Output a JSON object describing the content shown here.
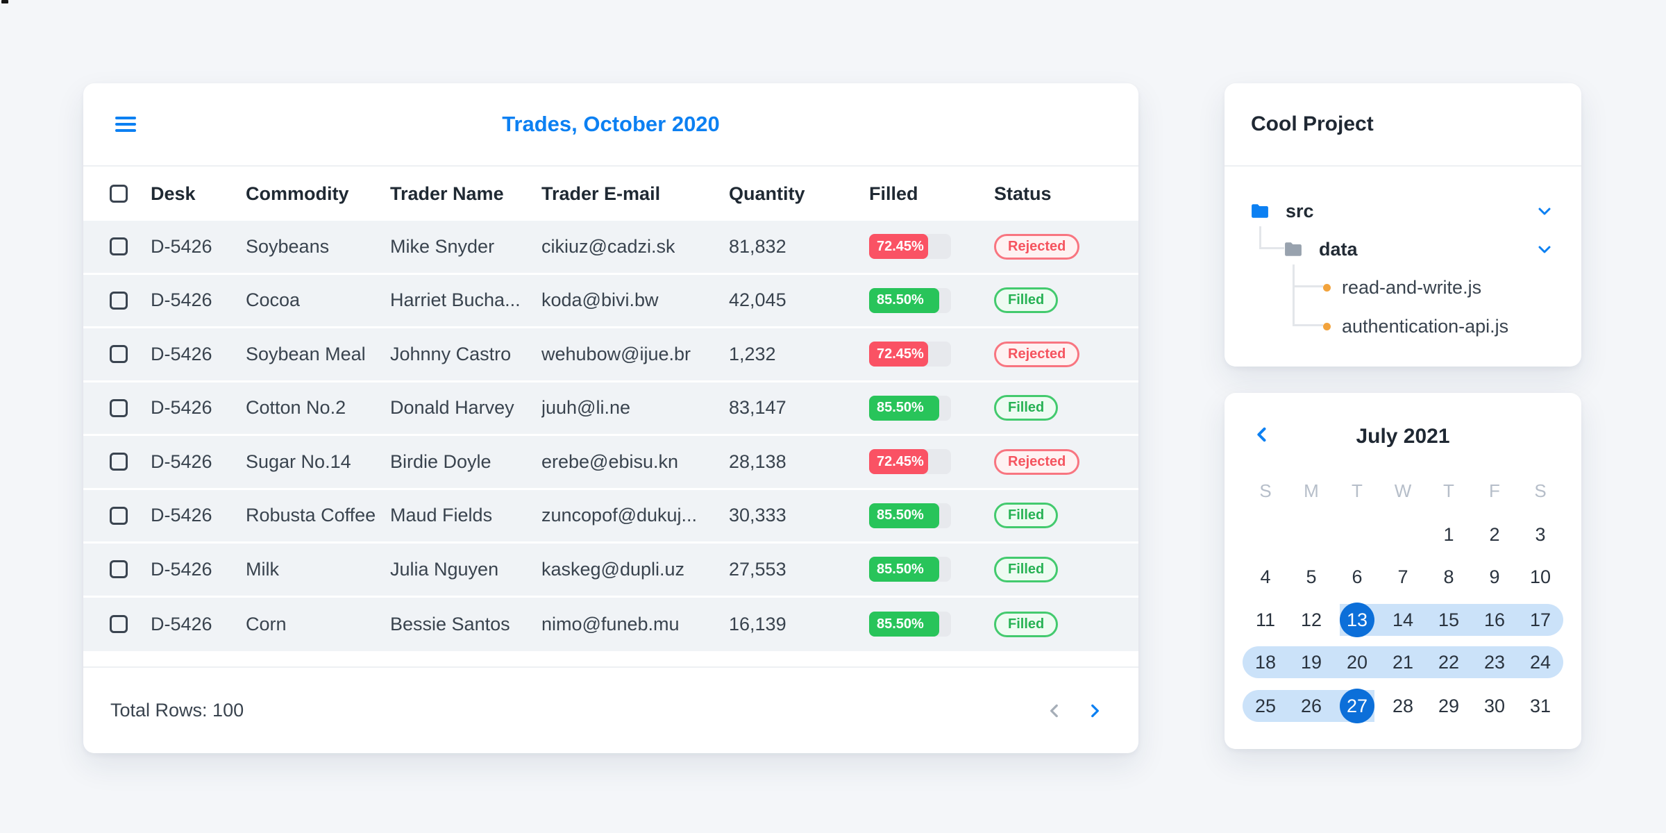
{
  "colors": {
    "page_bg": "#F4F6F9",
    "accent_blue": "#0C80F2",
    "deep_blue": "#0C6FD9",
    "band_blue": "#CBE2F9",
    "red": "#FA5264",
    "green": "#28C45A",
    "track": "#E7E9ED",
    "red_badge_text": "#F5545F",
    "red_badge_border": "#F87580",
    "red_badge_bg": "#FEF2F2",
    "green_badge_text": "#27B254",
    "green_badge_border": "#43CA6E",
    "green_badge_bg": "#EEFBF2",
    "row_bg": "#F0F3F6",
    "divider": "#EDF0F3",
    "text_dark": "#1F2933",
    "text_body": "#39434E",
    "muted": "#B6BEC9",
    "orange": "#F2A33C",
    "folder_gray": "#98A2AE",
    "tree_line": "#E3E6EA",
    "disabled_chev": "#A6AEB8"
  },
  "table": {
    "title": "Trades, October 2020",
    "columns": [
      "Desk",
      "Commodity",
      "Trader Name",
      "Trader E-mail",
      "Quantity",
      "Filled",
      "Status"
    ],
    "rows": [
      {
        "desk": "D-5426",
        "commodity": "Soybeans",
        "trader": "Mike Snyder",
        "email": "cikiuz@cadzi.sk",
        "quantity": "81,832",
        "filled_label": "72.45%",
        "filled_value": 72.45,
        "status": "Rejected"
      },
      {
        "desk": "D-5426",
        "commodity": "Cocoa",
        "trader": "Harriet Bucha...",
        "email": "koda@bivi.bw",
        "quantity": "42,045",
        "filled_label": "85.50%",
        "filled_value": 85.5,
        "status": "Filled"
      },
      {
        "desk": "D-5426",
        "commodity": "Soybean Meal",
        "trader": "Johnny Castro",
        "email": "wehubow@ijue.br",
        "quantity": "1,232",
        "filled_label": "72.45%",
        "filled_value": 72.45,
        "status": "Rejected"
      },
      {
        "desk": "D-5426",
        "commodity": "Cotton No.2",
        "trader": "Donald Harvey",
        "email": "juuh@li.ne",
        "quantity": "83,147",
        "filled_label": "85.50%",
        "filled_value": 85.5,
        "status": "Filled"
      },
      {
        "desk": "D-5426",
        "commodity": "Sugar No.14",
        "trader": "Birdie Doyle",
        "email": "erebe@ebisu.kn",
        "quantity": "28,138",
        "filled_label": "72.45%",
        "filled_value": 72.45,
        "status": "Rejected"
      },
      {
        "desk": "D-5426",
        "commodity": "Robusta Coffee",
        "trader": "Maud Fields",
        "email": "zuncopof@dukuj...",
        "quantity": "30,333",
        "filled_label": "85.50%",
        "filled_value": 85.5,
        "status": "Filled"
      },
      {
        "desk": "D-5426",
        "commodity": "Milk",
        "trader": "Julia Nguyen",
        "email": "kaskeg@dupli.uz",
        "quantity": "27,553",
        "filled_label": "85.50%",
        "filled_value": 85.5,
        "status": "Filled"
      },
      {
        "desk": "D-5426",
        "commodity": "Corn",
        "trader": "Bessie Santos",
        "email": "nimo@funeb.mu",
        "quantity": "16,139",
        "filled_label": "85.50%",
        "filled_value": 85.5,
        "status": "Filled"
      }
    ],
    "footer": {
      "total": "Total Rows: 100"
    }
  },
  "file_tree": {
    "title": "Cool Project",
    "folders": [
      {
        "label": "src"
      },
      {
        "label": "data"
      }
    ],
    "files": [
      {
        "label": "read-and-write.js"
      },
      {
        "label": "authentication-api.js"
      }
    ]
  },
  "calendar": {
    "title": "July 2021",
    "day_headers": [
      "S",
      "M",
      "T",
      "W",
      "T",
      "F",
      "S"
    ],
    "weeks": [
      [
        "",
        "",
        "",
        "",
        "1",
        "2",
        "3"
      ],
      [
        "4",
        "5",
        "6",
        "7",
        "8",
        "9",
        "10"
      ],
      [
        "11",
        "12",
        "13",
        "14",
        "15",
        "16",
        "17"
      ],
      [
        "18",
        "19",
        "20",
        "21",
        "22",
        "23",
        "24"
      ],
      [
        "25",
        "26",
        "27",
        "28",
        "29",
        "30",
        "31"
      ]
    ],
    "range": {
      "start_day": "13",
      "end_day": "27"
    },
    "bands": [
      {
        "week": 2,
        "from_col": 2,
        "to_col": 6,
        "caps": "right"
      },
      {
        "week": 3,
        "from_col": 0,
        "to_col": 6,
        "caps": "both"
      },
      {
        "week": 4,
        "from_col": 0,
        "to_col": 2,
        "caps": "left"
      }
    ],
    "circles": [
      {
        "week": 2,
        "col": 2
      },
      {
        "week": 4,
        "col": 2
      }
    ]
  }
}
